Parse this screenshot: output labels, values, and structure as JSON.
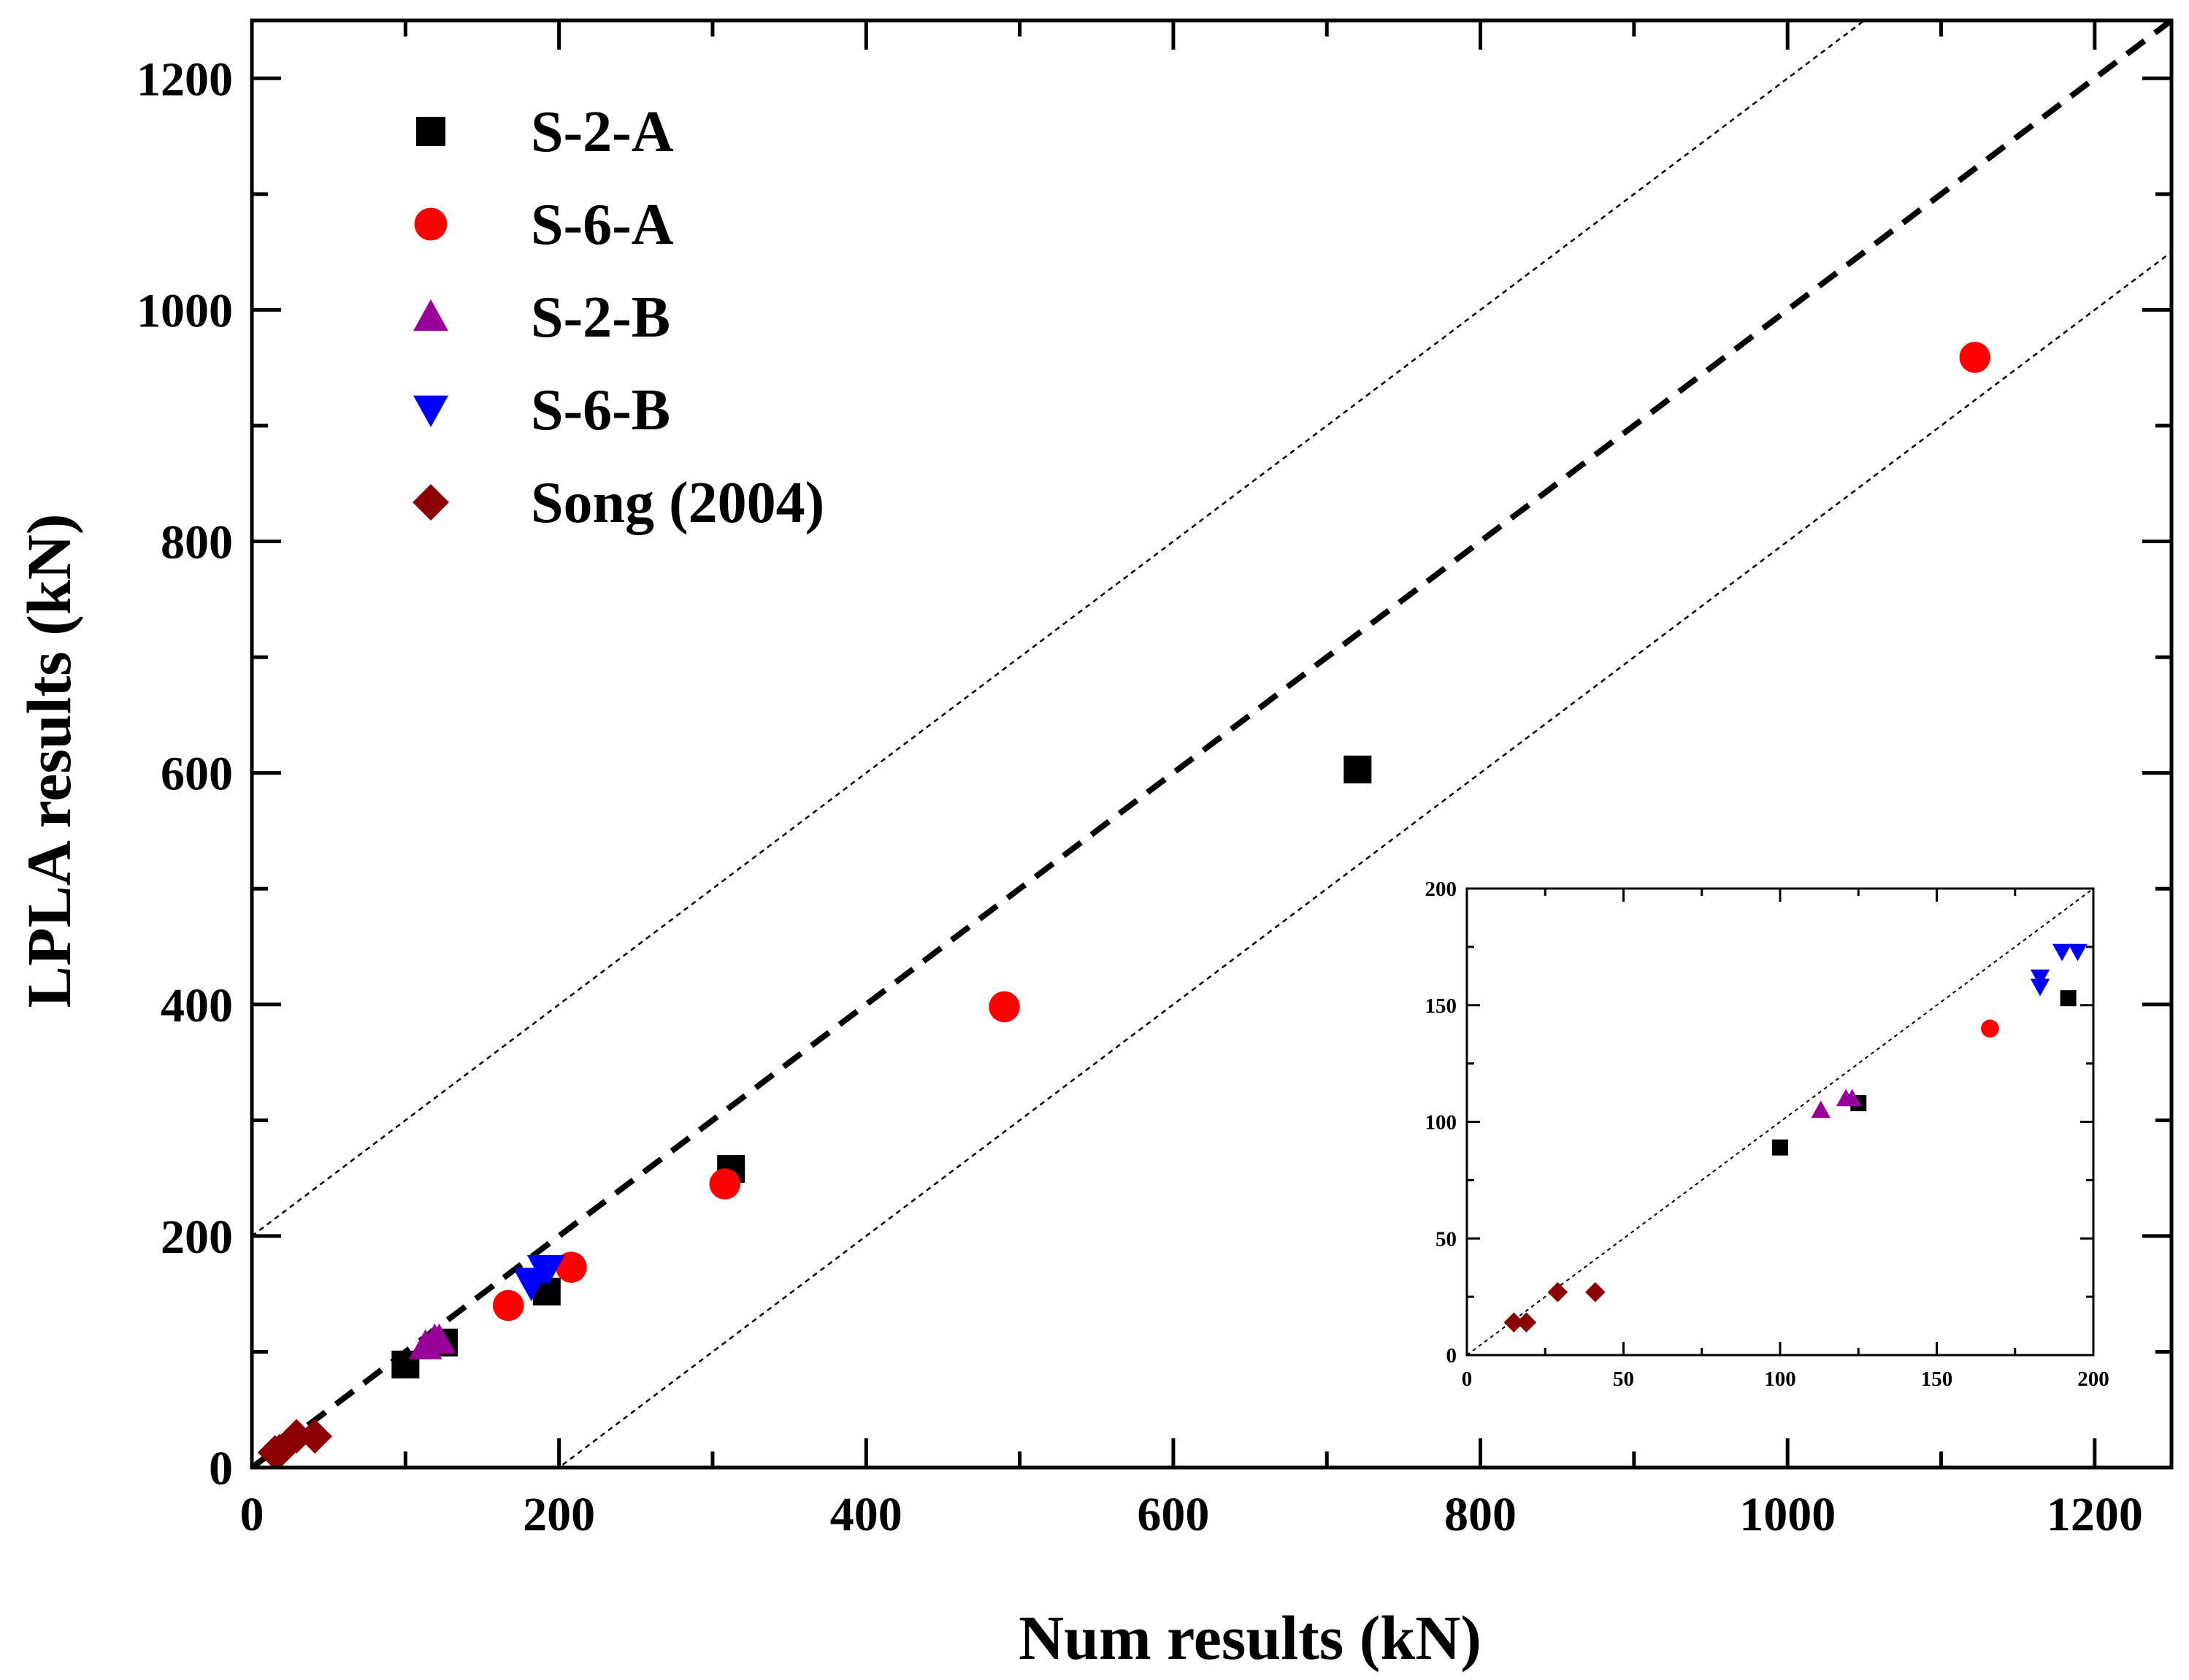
{
  "chart_data": [
    {
      "type": "scatter",
      "name": "main",
      "title": "",
      "xlabel": "Num results (kN)",
      "ylabel": "LPLA results (kN)",
      "xlim": [
        0,
        1250
      ],
      "ylim": [
        0,
        1250
      ],
      "xticks": [
        0,
        200,
        400,
        600,
        800,
        1000,
        1200
      ],
      "yticks": [
        0,
        200,
        400,
        600,
        800,
        1000,
        1200
      ],
      "grid": false,
      "legend_position": "top-left",
      "reference_lines": [
        {
          "name": "y = x",
          "style": "dashed-thick",
          "slope": 1,
          "intercept": 0
        },
        {
          "name": "y = x + 200",
          "style": "dotted-thin",
          "slope": 1,
          "intercept": 200
        },
        {
          "name": "y = x - 200",
          "style": "dotted-thin",
          "slope": 1,
          "intercept": -200
        }
      ],
      "series": [
        {
          "name": "S-2-A",
          "marker": "square",
          "color": "#000000",
          "x": [
            100,
            125,
            192,
            312,
            720
          ],
          "y": [
            89,
            108,
            152,
            258,
            603
          ]
        },
        {
          "name": "S-6-A",
          "marker": "circle",
          "color": "#ff0000",
          "x": [
            167,
            208,
            308,
            490,
            1122
          ],
          "y": [
            140,
            173,
            245,
            398,
            959
          ]
        },
        {
          "name": "S-2-B",
          "marker": "triangle-up",
          "color": "#990099",
          "x": [
            113,
            119,
            122
          ],
          "y": [
            105,
            110,
            110
          ]
        },
        {
          "name": "S-6-B",
          "marker": "triangle-down",
          "color": "#0000ff",
          "x": [
            182,
            182,
            190,
            193
          ],
          "y": [
            161,
            158,
            172,
            172
          ]
        },
        {
          "name": "Song (2004)",
          "marker": "diamond",
          "color": "#8b0000",
          "x": [
            15,
            18,
            29,
            41
          ],
          "y": [
            13,
            14,
            27,
            27
          ]
        }
      ]
    },
    {
      "type": "scatter",
      "name": "inset",
      "title": "",
      "xlabel": "",
      "ylabel": "",
      "xlim": [
        0,
        200
      ],
      "ylim": [
        0,
        200
      ],
      "xticks": [
        0,
        50,
        100,
        150,
        200
      ],
      "yticks": [
        0,
        50,
        100,
        150,
        200
      ],
      "grid": false,
      "legend_position": "none",
      "reference_lines": [
        {
          "name": "y = x",
          "style": "dotted-thin",
          "slope": 1,
          "intercept": 0
        }
      ],
      "series": [
        {
          "name": "S-2-A",
          "marker": "square",
          "color": "#000000",
          "x": [
            100,
            125,
            192
          ],
          "y": [
            89,
            108,
            153
          ]
        },
        {
          "name": "S-6-A",
          "marker": "circle",
          "color": "#ff0000",
          "x": [
            167
          ],
          "y": [
            140
          ]
        },
        {
          "name": "S-2-B",
          "marker": "triangle-up",
          "color": "#990099",
          "x": [
            113,
            121,
            123
          ],
          "y": [
            105,
            110,
            110
          ]
        },
        {
          "name": "S-6-B",
          "marker": "triangle-down",
          "color": "#0000ff",
          "x": [
            183,
            183,
            190,
            195
          ],
          "y": [
            162,
            158,
            173,
            173
          ]
        },
        {
          "name": "Song (2004)",
          "marker": "diamond",
          "color": "#8b0000",
          "x": [
            15,
            19,
            29,
            41
          ],
          "y": [
            14,
            14,
            27,
            27
          ]
        }
      ]
    }
  ]
}
